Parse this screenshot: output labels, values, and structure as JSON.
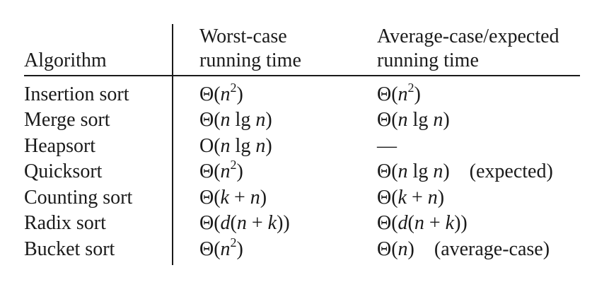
{
  "headers": {
    "algorithm": "Algorithm",
    "worst_line1": "Worst-case",
    "worst_line2": "running time",
    "average_line1": "Average-case/expected",
    "average_line2": "running time"
  },
  "rows": [
    {
      "algorithm": "Insertion sort",
      "worst": "Θ(n²)",
      "average": "Θ(n²)",
      "note": ""
    },
    {
      "algorithm": "Merge sort",
      "worst": "Θ(n lg n)",
      "average": "Θ(n lg n)",
      "note": ""
    },
    {
      "algorithm": "Heapsort",
      "worst": "O(n lg n)",
      "average": "—",
      "note": ""
    },
    {
      "algorithm": "Quicksort",
      "worst": "Θ(n²)",
      "average": "Θ(n lg n)",
      "note": "(expected)"
    },
    {
      "algorithm": "Counting sort",
      "worst": "Θ(k + n)",
      "average": "Θ(k + n)",
      "note": ""
    },
    {
      "algorithm": "Radix sort",
      "worst": "Θ(d(n + k))",
      "average": "Θ(d(n + k))",
      "note": ""
    },
    {
      "algorithm": "Bucket sort",
      "worst": "Θ(n²)",
      "average": "Θ(n)",
      "note": "(average-case)"
    }
  ]
}
